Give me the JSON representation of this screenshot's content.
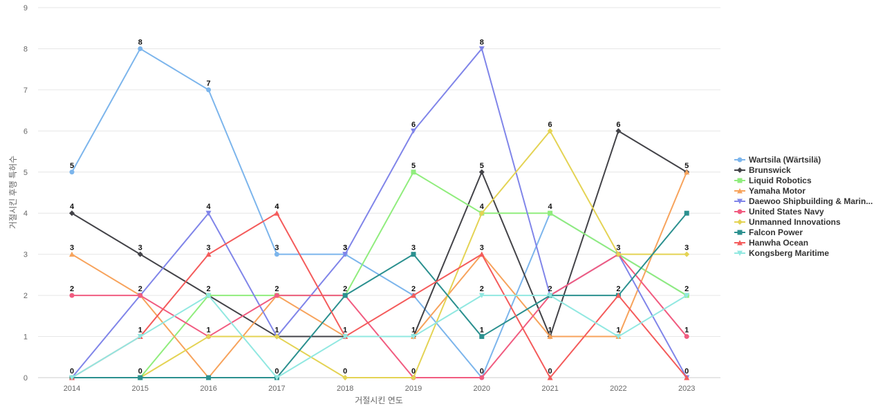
{
  "chart_data": {
    "type": "line",
    "xlabel": "거절시킨 연도",
    "ylabel": "거절시킨 후행 특허수",
    "x": [
      "2014",
      "2015",
      "2016",
      "2017",
      "2018",
      "2019",
      "2020",
      "2021",
      "2022",
      "2023"
    ],
    "ylim": [
      0,
      9
    ],
    "yticks": [
      0,
      1,
      2,
      3,
      4,
      5,
      6,
      7,
      8,
      9
    ],
    "grid": true,
    "legend_position": "right",
    "series": [
      {
        "name": "Wartsila (Wärtsilä)",
        "color": "#7cb5ec",
        "marker": "circle",
        "values": [
          5,
          8,
          7,
          3,
          3,
          2,
          0,
          4,
          3,
          2
        ]
      },
      {
        "name": "Brunswick",
        "color": "#434348",
        "marker": "diamond",
        "values": [
          4,
          3,
          2,
          1,
          1,
          1,
          5,
          1,
          6,
          5
        ]
      },
      {
        "name": "Liquid Robotics",
        "color": "#90ed7d",
        "marker": "square",
        "values": [
          0,
          0,
          2,
          2,
          2,
          5,
          4,
          4,
          3,
          2
        ]
      },
      {
        "name": "Yamaha Motor",
        "color": "#f7a35c",
        "marker": "triangle",
        "values": [
          3,
          2,
          0,
          2,
          1,
          1,
          3,
          1,
          1,
          5
        ]
      },
      {
        "name": "Daewoo Shipbuilding & Marin...",
        "color": "#8085e9",
        "marker": "triangle-down",
        "values": [
          0,
          2,
          4,
          1,
          3,
          6,
          8,
          2,
          3,
          0
        ]
      },
      {
        "name": "United States Navy",
        "color": "#f15c80",
        "marker": "circle",
        "values": [
          2,
          2,
          1,
          2,
          2,
          0,
          0,
          2,
          3,
          1
        ]
      },
      {
        "name": "Unmanned Innovations",
        "color": "#e4d354",
        "marker": "diamond",
        "values": [
          0,
          0,
          1,
          1,
          0,
          0,
          4,
          6,
          3,
          3
        ]
      },
      {
        "name": "Falcon Power",
        "color": "#2b908f",
        "marker": "square",
        "values": [
          0,
          0,
          0,
          0,
          2,
          3,
          1,
          2,
          2,
          4
        ]
      },
      {
        "name": "Hanwha Ocean",
        "color": "#f45b5b",
        "marker": "triangle",
        "values": [
          0,
          1,
          3,
          4,
          1,
          2,
          3,
          0,
          2,
          0
        ]
      },
      {
        "name": "Kongsberg Maritime",
        "color": "#91e8e1",
        "marker": "triangle-down",
        "values": [
          0,
          1,
          2,
          0,
          1,
          1,
          2,
          2,
          1,
          2
        ]
      }
    ],
    "top_labels": [
      "5",
      "8",
      "7",
      "4",
      "3",
      "6",
      "8",
      "6",
      "6",
      "5"
    ],
    "labels_by_level": {
      "4": [
        "4",
        "",
        "4",
        "4",
        "",
        "",
        "4",
        "4",
        "",
        ""
      ],
      "3": [
        "3",
        "3",
        "3",
        "3",
        "3",
        "3",
        "3",
        "",
        "3",
        "3"
      ],
      "2": [
        "2",
        "2",
        "2",
        "2",
        "2",
        "2",
        "2",
        "2",
        "2",
        "2"
      ],
      "1": [
        "",
        "1",
        "1",
        "1",
        "1",
        "1",
        "1",
        "1",
        "1",
        "1"
      ],
      "0": [
        "0",
        "0",
        "",
        "0",
        "0",
        "0",
        "0",
        "0",
        "",
        "0"
      ]
    },
    "mid_labels": [
      "",
      "",
      "",
      "",
      "",
      "5",
      "5",
      "",
      "",
      ""
    ]
  }
}
